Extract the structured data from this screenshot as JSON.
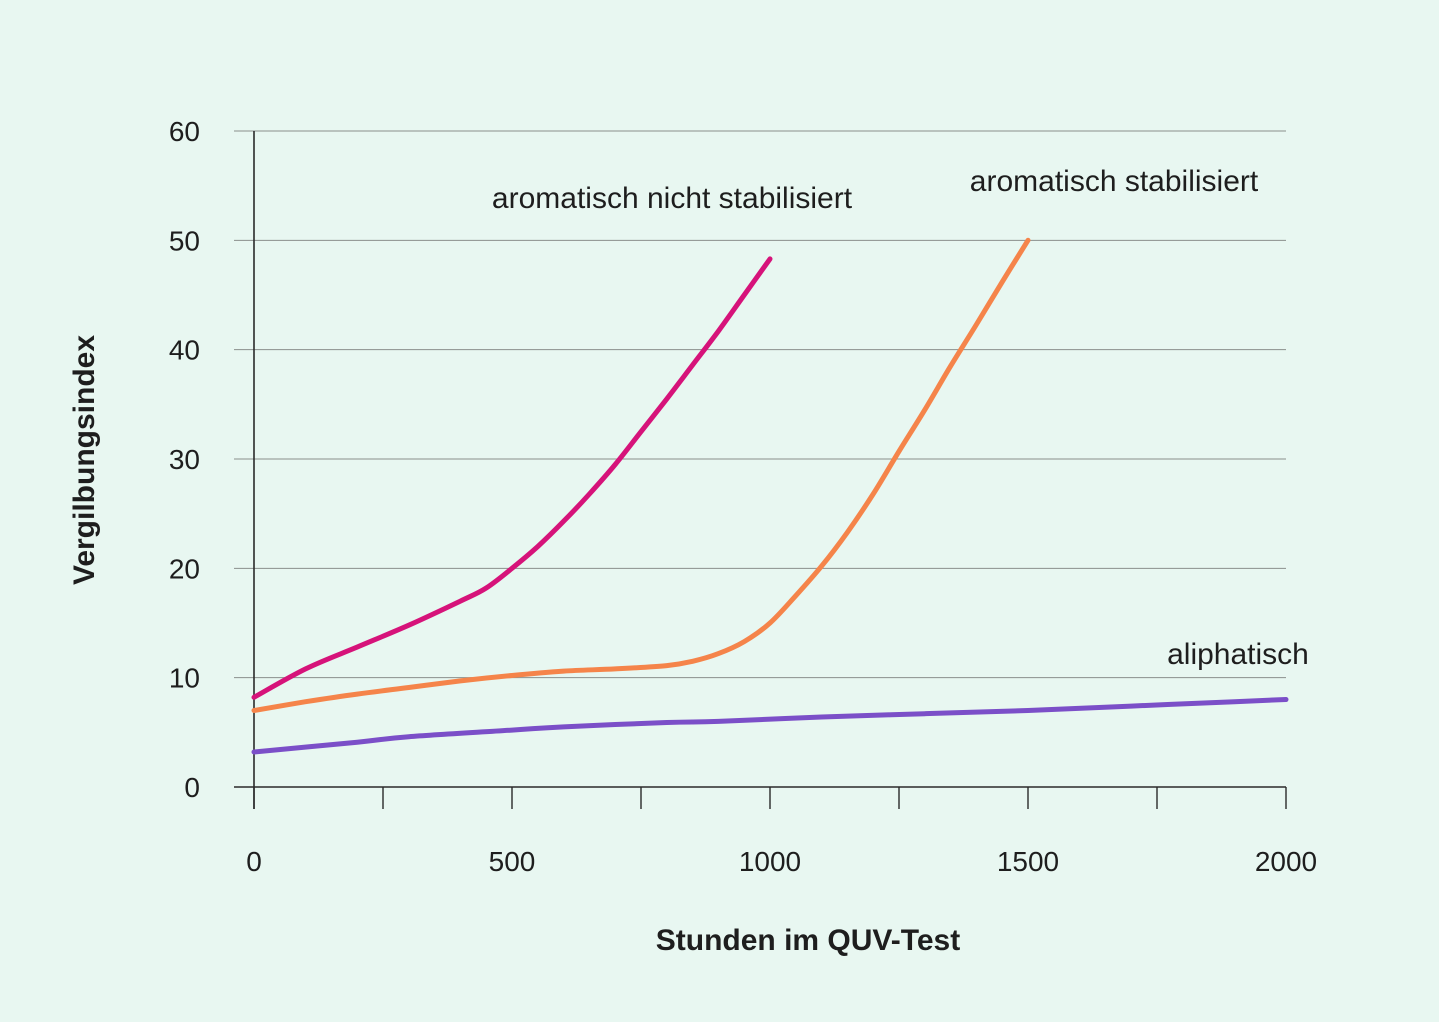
{
  "chart_data": {
    "type": "line",
    "title": "",
    "xlabel": "Stunden im QUV-Test",
    "ylabel": "Vergilbungsindex",
    "xlim": [
      0,
      2000
    ],
    "ylim": [
      0,
      60
    ],
    "x_ticks": [
      0,
      500,
      1000,
      1500,
      2000
    ],
    "x_tick_labels": [
      "0",
      "500",
      "1000",
      "1500",
      "2000"
    ],
    "y_ticks": [
      0,
      10,
      20,
      30,
      40,
      50,
      60
    ],
    "y_tick_labels": [
      "0",
      "10",
      "20",
      "30",
      "40",
      "50",
      "60"
    ],
    "grid": "horizontal",
    "legend": "inline labels",
    "series": [
      {
        "name": "aromatisch nicht stabilisiert",
        "color": "#d6137a",
        "x": [
          0,
          100,
          200,
          300,
          400,
          450,
          500,
          550,
          600,
          650,
          700,
          750,
          800,
          850,
          900,
          950,
          1000
        ],
        "y": [
          8.2,
          10.8,
          12.8,
          14.8,
          17.0,
          18.2,
          20.0,
          22.0,
          24.3,
          26.8,
          29.5,
          32.5,
          35.5,
          38.6,
          41.7,
          45.0,
          48.3
        ]
      },
      {
        "name": "aromatisch stabilisiert",
        "color": "#f5844a",
        "x": [
          0,
          100,
          200,
          300,
          400,
          500,
          600,
          700,
          800,
          850,
          900,
          950,
          1000,
          1050,
          1100,
          1150,
          1200,
          1250,
          1300,
          1350,
          1400,
          1450,
          1500
        ],
        "y": [
          7.0,
          7.8,
          8.5,
          9.1,
          9.7,
          10.2,
          10.6,
          10.8,
          11.1,
          11.5,
          12.2,
          13.3,
          15.0,
          17.5,
          20.2,
          23.3,
          26.8,
          30.7,
          34.5,
          38.5,
          42.3,
          46.2,
          50.0
        ]
      },
      {
        "name": "aliphatisch",
        "color": "#7b4fc8",
        "x": [
          0,
          200,
          300,
          500,
          600,
          800,
          900,
          1100,
          1300,
          1500,
          1700,
          1900,
          2000
        ],
        "y": [
          3.2,
          4.1,
          4.6,
          5.2,
          5.5,
          5.9,
          6.0,
          6.4,
          6.7,
          7.0,
          7.4,
          7.8,
          8.0
        ]
      }
    ]
  }
}
